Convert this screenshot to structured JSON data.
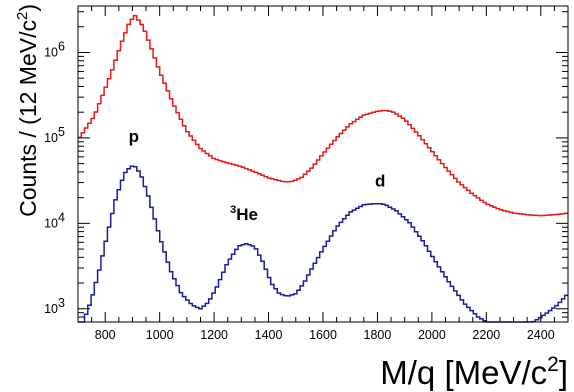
{
  "chart_data": {
    "type": "line",
    "title": "",
    "xlabel": "M/q [MeV/c",
    "xlabel_sup": "2",
    "xlabel_close": "]",
    "ylabel": "Counts / (12 MeV/c",
    "ylabel_sup": "2",
    "ylabel_close": ")",
    "xlim": [
      700,
      2500
    ],
    "ylim": [
      700,
      3500000
    ],
    "y_scale": "log",
    "grid": false,
    "bin_width": 12,
    "x_ticks": [
      800,
      1000,
      1200,
      1400,
      1600,
      1800,
      2000,
      2200,
      2400
    ],
    "y_ticks": [
      {
        "value": 1000,
        "mantissa": "10",
        "exp": "3"
      },
      {
        "value": 10000,
        "mantissa": "10",
        "exp": "4"
      },
      {
        "value": 100000,
        "mantissa": "10",
        "exp": "5"
      },
      {
        "value": 1000000,
        "mantissa": "10",
        "exp": "6"
      }
    ],
    "series": [
      {
        "color": "#e8191c",
        "x": [
          700,
          760,
          820,
          860,
          890,
          910,
          940,
          970,
          1000,
          1050,
          1100,
          1150,
          1200,
          1250,
          1300,
          1350,
          1400,
          1450,
          1480,
          1520,
          1560,
          1600,
          1650,
          1700,
          1750,
          1800,
          1830,
          1860,
          1900,
          1950,
          2000,
          2050,
          2100,
          2150,
          2200,
          2250,
          2300,
          2350,
          2400,
          2450,
          2500
        ],
        "y": [
          95000,
          180000,
          550000,
          1300000,
          2300000,
          2700000,
          2000000,
          1100000,
          600000,
          250000,
          120000,
          75000,
          57000,
          51000,
          46000,
          40000,
          34000,
          31000,
          30500,
          34000,
          45000,
          65000,
          100000,
          145000,
          185000,
          205000,
          210000,
          200000,
          165000,
          110000,
          70000,
          45000,
          30000,
          22000,
          17000,
          14500,
          13200,
          12600,
          12300,
          12600,
          13200
        ]
      },
      {
        "color": "#1a1a9e",
        "x": [
          700,
          720,
          750,
          780,
          810,
          840,
          870,
          895,
          910,
          930,
          960,
          1000,
          1040,
          1080,
          1120,
          1150,
          1180,
          1210,
          1250,
          1290,
          1320,
          1350,
          1380,
          1410,
          1440,
          1470,
          1500,
          1530,
          1560,
          1600,
          1650,
          1700,
          1750,
          1790,
          1810,
          1830,
          1870,
          1920,
          1970,
          2020,
          2070,
          2120,
          2170,
          2220,
          2260,
          2300,
          2340,
          2380,
          2420,
          2460,
          2500
        ],
        "y": [
          450,
          700,
          1300,
          3000,
          8000,
          20000,
          38000,
          47000,
          46000,
          38000,
          20000,
          7000,
          2800,
          1500,
          1100,
          1000,
          1200,
          1800,
          3500,
          5400,
          5800,
          5300,
          3500,
          2000,
          1500,
          1400,
          1500,
          2000,
          3000,
          5000,
          9000,
          13500,
          16500,
          17000,
          17000,
          16500,
          14000,
          10000,
          6000,
          3300,
          1900,
          1150,
          800,
          650,
          600,
          610,
          640,
          720,
          880,
          1100,
          1500
        ]
      }
    ],
    "annotations": [
      {
        "text": "p",
        "x": 905,
        "y": 90000
      },
      {
        "pre_sup": "3",
        "text": "He",
        "x": 1310,
        "y": 11000
      },
      {
        "text": "d",
        "x": 1810,
        "y": 27000
      }
    ]
  }
}
